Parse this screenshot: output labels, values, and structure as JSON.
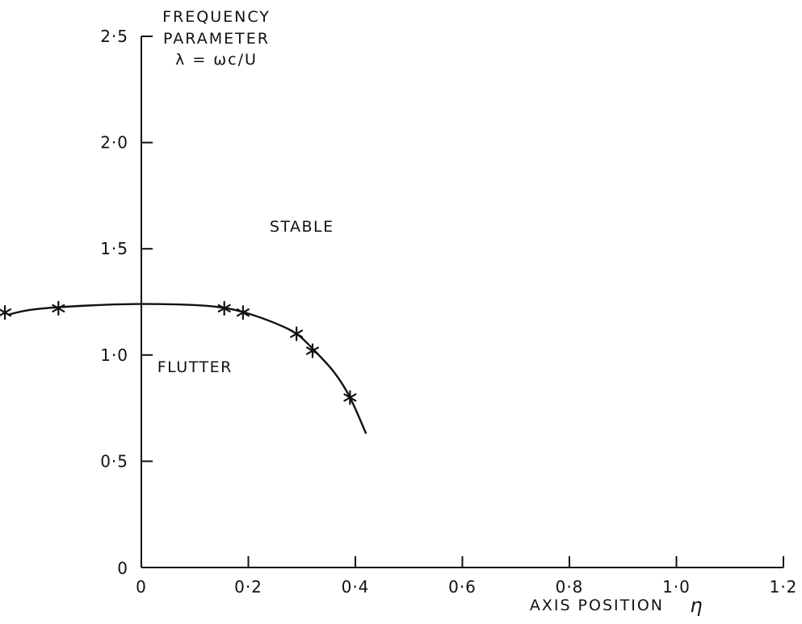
{
  "chart_data": {
    "type": "line",
    "x_label": "AXIS POSITION",
    "x_symbol": "η",
    "y_label_lines": [
      "FREQUENCY",
      "PARAMETER",
      "λ = ωc/U"
    ],
    "x_tick_labels": [
      "0",
      "0·2",
      "0·4",
      "0·6",
      "0·8",
      "1·0",
      "1·2"
    ],
    "y_tick_labels": [
      "0",
      "0·5",
      "1·0",
      "1·5",
      "2·0",
      "2·5"
    ],
    "xlim": [
      -0.27,
      1.2
    ],
    "ylim": [
      0,
      2.5
    ],
    "x_ticks": [
      0,
      0.2,
      0.4,
      0.6,
      0.8,
      1.0,
      1.2
    ],
    "y_ticks": [
      0,
      0.5,
      1.0,
      1.5,
      2.0,
      2.5
    ],
    "region_labels": [
      {
        "text": "STABLE",
        "x": 0.3,
        "y": 1.58
      },
      {
        "text": "FLUTTER",
        "x": 0.1,
        "y": 0.92
      }
    ],
    "series": [
      {
        "points": [
          {
            "x": -0.255,
            "y": 1.2
          },
          {
            "x": -0.155,
            "y": 1.22
          },
          {
            "x": 0.155,
            "y": 1.22
          },
          {
            "x": 0.19,
            "y": 1.2
          },
          {
            "x": 0.29,
            "y": 1.1
          },
          {
            "x": 0.32,
            "y": 1.02
          },
          {
            "x": 0.39,
            "y": 0.8
          }
        ],
        "curve": [
          {
            "x": -0.27,
            "y": 1.19
          },
          {
            "x": -0.2,
            "y": 1.215
          },
          {
            "x": -0.1,
            "y": 1.233
          },
          {
            "x": 0.0,
            "y": 1.24
          },
          {
            "x": 0.1,
            "y": 1.235
          },
          {
            "x": 0.16,
            "y": 1.22
          },
          {
            "x": 0.2,
            "y": 1.195
          },
          {
            "x": 0.25,
            "y": 1.15
          },
          {
            "x": 0.29,
            "y": 1.1
          },
          {
            "x": 0.32,
            "y": 1.03
          },
          {
            "x": 0.36,
            "y": 0.92
          },
          {
            "x": 0.39,
            "y": 0.8
          },
          {
            "x": 0.42,
            "y": 0.63
          }
        ]
      }
    ]
  }
}
